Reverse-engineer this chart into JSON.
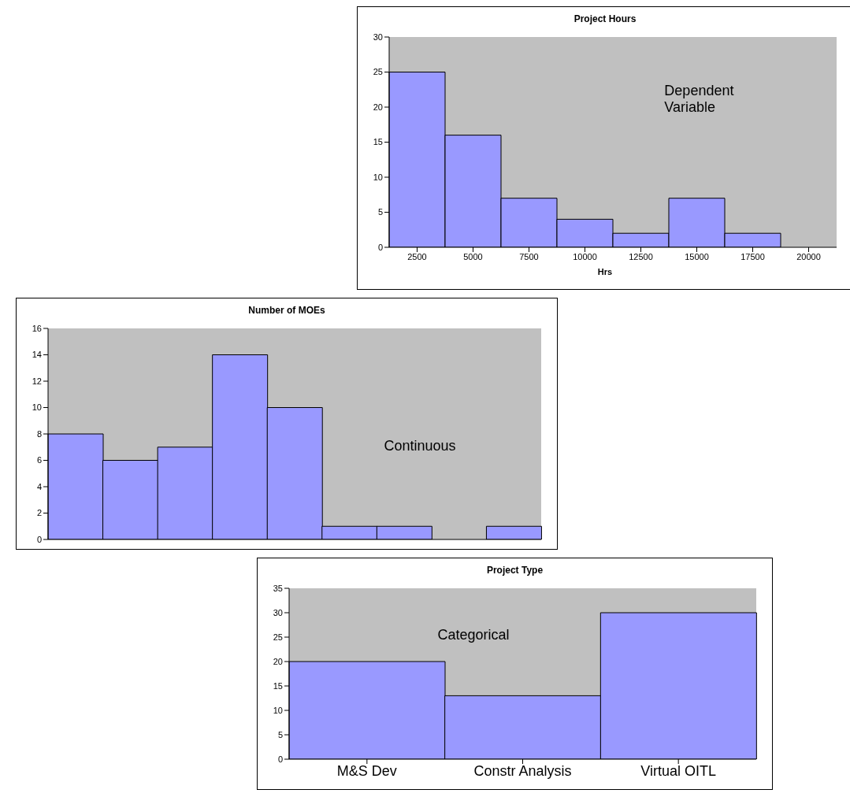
{
  "chart_data": [
    {
      "type": "bar",
      "title": "Project Hours",
      "xlabel": "Hrs",
      "categories": [
        "2500",
        "5000",
        "7500",
        "10000",
        "12500",
        "15000",
        "17500",
        "20000"
      ],
      "series": [
        {
          "color": "#9999ff",
          "values": [
            25,
            16,
            7,
            4,
            2,
            7,
            2,
            0
          ]
        }
      ],
      "ylim": [
        0,
        30
      ],
      "yticks": [
        0,
        5,
        10,
        15,
        20,
        25,
        30
      ],
      "grid": false,
      "legend": false,
      "annotations": [
        "Dependent Variable"
      ]
    },
    {
      "type": "bar",
      "title": "Number of MOEs",
      "categories": [
        null,
        null,
        null,
        null,
        null,
        null,
        null,
        null,
        null
      ],
      "series": [
        {
          "color": "#9999ff",
          "values": [
            8,
            6,
            7,
            14,
            10,
            1,
            1,
            0,
            1
          ]
        }
      ],
      "ylim": [
        0,
        16
      ],
      "yticks": [
        0,
        2,
        4,
        6,
        8,
        10,
        12,
        14,
        16
      ],
      "grid": false,
      "legend": false,
      "tick_labels": "y",
      "annotations": [
        "Continuous"
      ]
    },
    {
      "type": "bar",
      "title": "Project Type",
      "categories": [
        "M&S Dev",
        "Constr Analysis",
        "Virtual OITL"
      ],
      "series": [
        {
          "color": "#9999ff",
          "values": [
            20,
            13,
            30
          ]
        }
      ],
      "ylim": [
        0,
        35
      ],
      "yticks": [
        0,
        5,
        10,
        15,
        20,
        25,
        30,
        35
      ],
      "grid": false,
      "legend": false,
      "annotations": [
        "Categorical"
      ]
    }
  ]
}
